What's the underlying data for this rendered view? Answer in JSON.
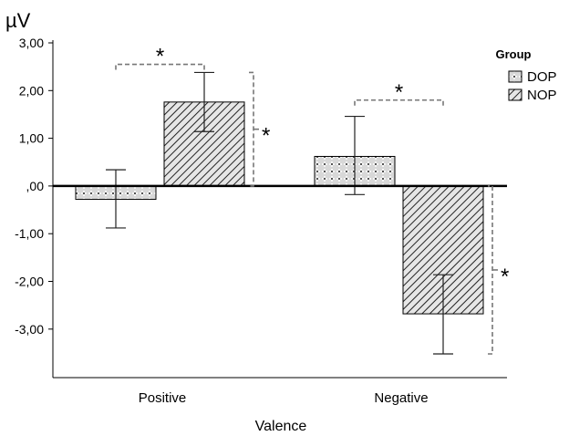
{
  "chart_data": {
    "type": "bar",
    "unit_label": "µV",
    "xlabel": "Valence",
    "ylabel": "",
    "categories": [
      "Positive",
      "Negative"
    ],
    "ylim": [
      -4.2,
      3.0
    ],
    "yticks": [
      3.0,
      2.0,
      1.0,
      0.0,
      -1.0,
      -2.0,
      -3.0
    ],
    "ytick_labels": [
      "3,00",
      "2,00",
      "1,00",
      ",00",
      "-1,00",
      "-2,00",
      "-3,00"
    ],
    "series": [
      {
        "name": "DOP",
        "pattern": "crosshatch-dots",
        "values": [
          -0.28,
          0.62
        ],
        "error_low": [
          -0.88,
          -0.18
        ],
        "error_high": [
          0.34,
          1.46
        ]
      },
      {
        "name": "NOP",
        "pattern": "diagonal-lines",
        "values": [
          1.76,
          -2.68
        ],
        "error_low": [
          1.14,
          -3.52
        ],
        "error_high": [
          2.38,
          -1.86
        ]
      }
    ],
    "legend": {
      "title": "Group",
      "position": "top-right",
      "entries": [
        "DOP",
        "NOP"
      ]
    },
    "significance": [
      {
        "label": "*",
        "type": "between-groups",
        "category": "Positive",
        "y": 2.55
      },
      {
        "label": "*",
        "type": "between-groups",
        "category": "Negative",
        "y": 1.8
      },
      {
        "label": "*",
        "type": "vertical",
        "category": "Positive",
        "series": "NOP",
        "y_from": 0.0,
        "y_to": 2.38
      },
      {
        "label": "*",
        "type": "vertical",
        "category": "Negative",
        "series": "NOP",
        "y_from": 0.0,
        "y_to": -3.52
      }
    ],
    "colors": {
      "bar_fill": "#d4d4d4",
      "axis": "#000000",
      "bracket": "#777777",
      "error_bar": "#222222"
    }
  }
}
